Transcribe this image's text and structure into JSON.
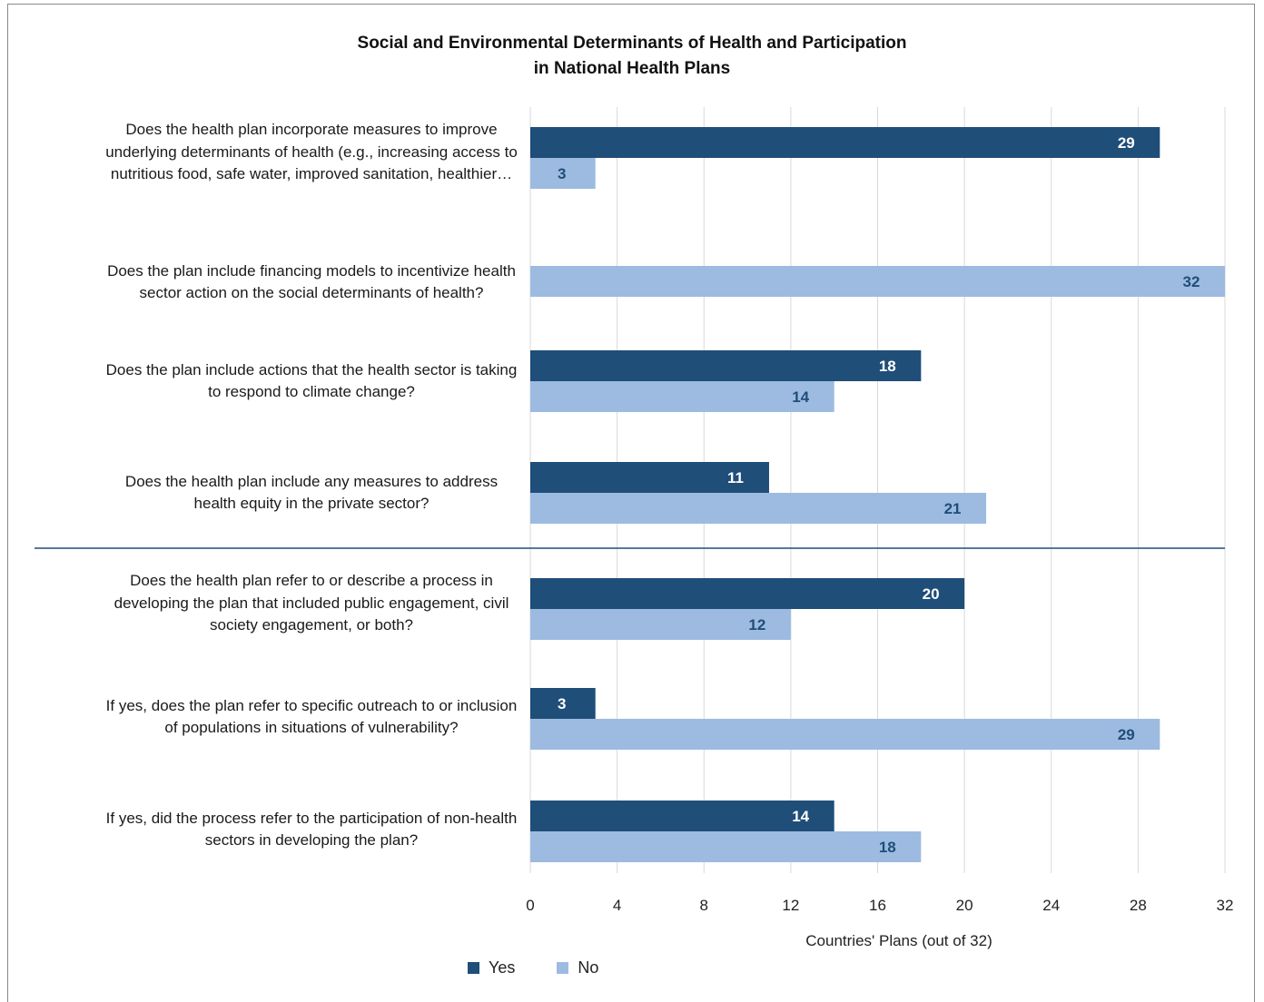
{
  "chart_data": {
    "type": "bar",
    "orientation": "horizontal",
    "title": [
      "Social and Environmental Determinants of Health and Participation",
      "in National Health Plans"
    ],
    "xlabel": "Countries' Plans (out of 32)",
    "xlim": [
      0,
      32
    ],
    "xticks": [
      0,
      4,
      8,
      12,
      16,
      20,
      24,
      28,
      32
    ],
    "grid": "vertical",
    "legend_position": "bottom",
    "categories": [
      [
        "Does the health plan incorporate measures to improve",
        "underlying determinants of health (e.g., increasing access to",
        "nutritious food, safe water, improved sanitation, healthier…"
      ],
      [
        "Does the plan include financing models to incentivize health",
        "sector action on the social determinants of health?"
      ],
      [
        "Does the plan include actions that the health sector is taking",
        "to respond to climate change?"
      ],
      [
        "Does the health plan include any measures to address",
        "health equity in the private sector?"
      ],
      [
        "Does the health plan refer to or describe a process in",
        "developing the plan that included public engagement, civil",
        "society engagement, or both?"
      ],
      [
        "If yes, does the plan refer to specific outreach to or inclusion",
        "of populations in situations of vulnerability?"
      ],
      [
        "If yes, did the process refer to the participation of non-health",
        "sectors in developing the plan?"
      ]
    ],
    "series": [
      {
        "name": "Yes",
        "color": "#1f4e79",
        "label_color": "#ffffff",
        "values": [
          29,
          null,
          18,
          11,
          20,
          3,
          14
        ]
      },
      {
        "name": "No",
        "color": "#9dbbe0",
        "label_color": "#1f4e79",
        "values": [
          3,
          32,
          14,
          21,
          12,
          29,
          18
        ]
      }
    ],
    "divider_after_category": 3,
    "divider_color": "#1f4e79",
    "grid_color": "#d9d9d9"
  }
}
